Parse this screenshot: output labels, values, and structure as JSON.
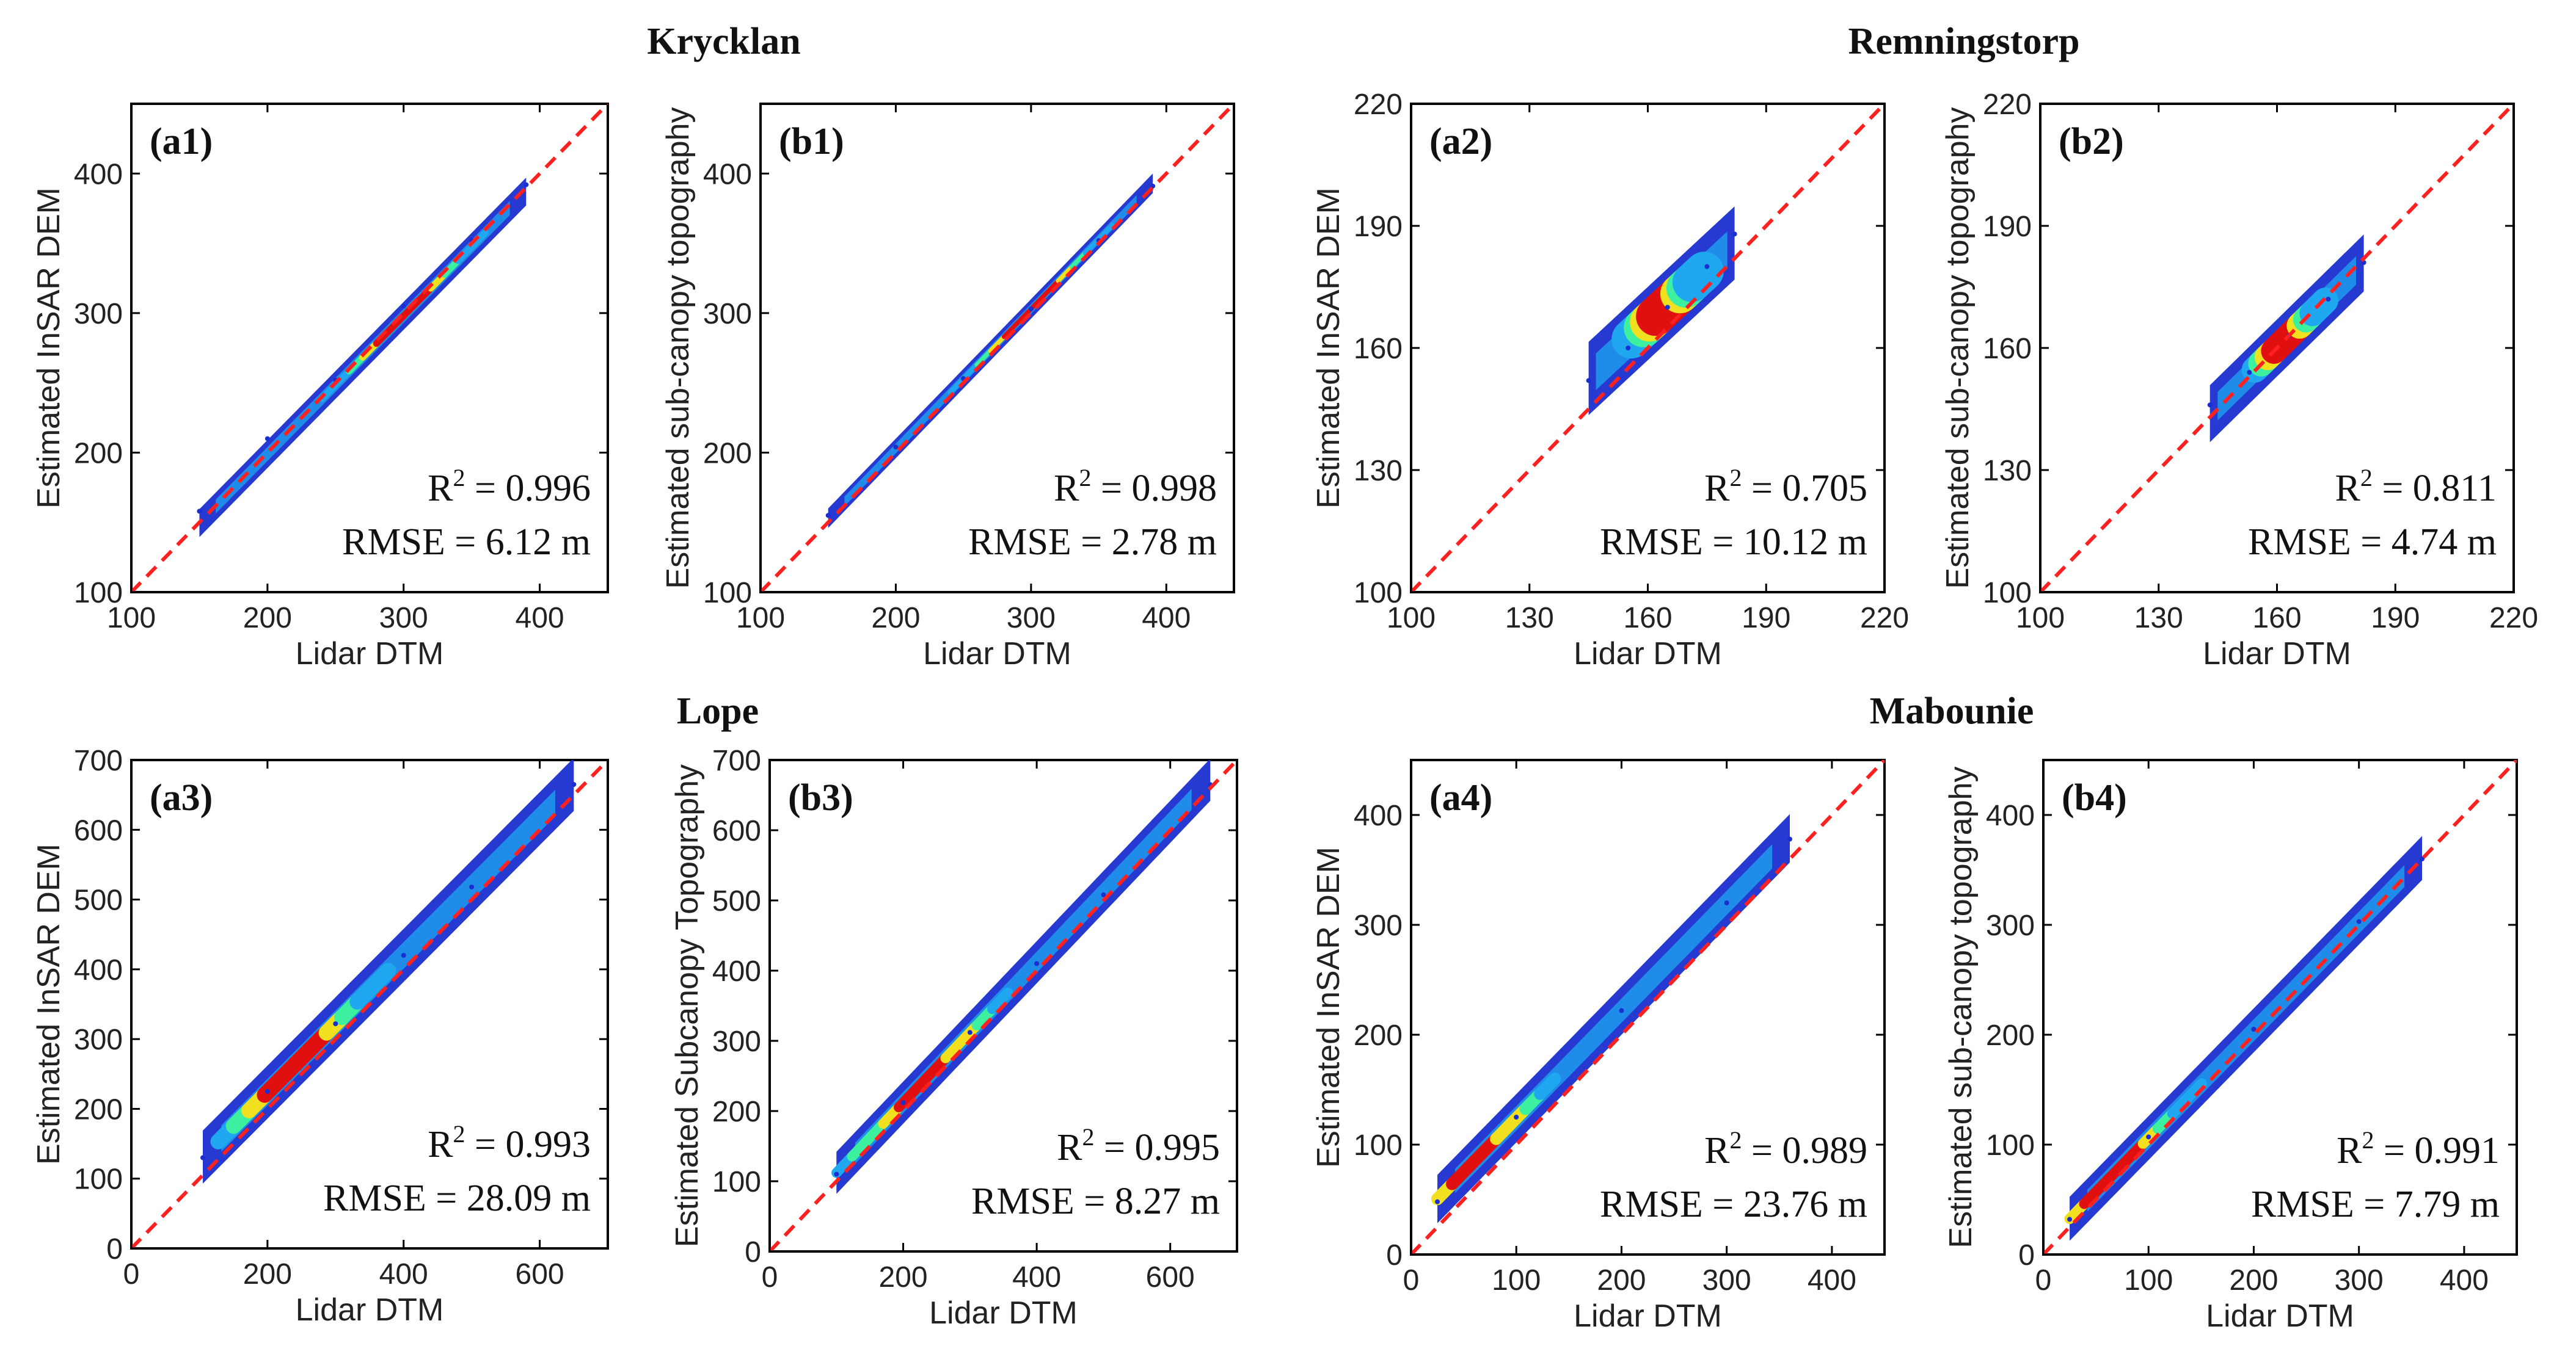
{
  "site_titles": [
    {
      "name": "Krycklan"
    },
    {
      "name": "Remningstorp"
    },
    {
      "name": "Lope"
    },
    {
      "name": "Mabounie"
    }
  ],
  "colors": {
    "identity_line": "#ff2020",
    "density_low": "#1a2fd0",
    "density_mid_low": "#1fa8f0",
    "density_mid": "#3df0a0",
    "density_mid_high": "#f0e020",
    "density_high": "#e01010",
    "axes": "#000000"
  },
  "chart_data": [
    {
      "id": "a1",
      "type": "scatter",
      "panel_label": "(a1)",
      "site": "Krycklan",
      "xlabel": "Lidar DTM",
      "ylabel": "Estimated InSAR DEM",
      "xlim": [
        100,
        450
      ],
      "ylim": [
        100,
        450
      ],
      "xticks": [
        100,
        200,
        300,
        400
      ],
      "yticks": [
        100,
        200,
        300,
        400
      ],
      "identity_line": true,
      "stats": {
        "r2_label": "R",
        "r2_sup": "2",
        "r2_value": " = 0.996",
        "rmse": "RMSE = 6.12 m"
      },
      "density": {
        "x_start": 150,
        "x_end": 390,
        "slope": 0.99,
        "offset": 1,
        "width": 10,
        "spread": 3,
        "peak_x": 300
      },
      "points": [
        [
          150,
          158
        ],
        [
          200,
          210
        ],
        [
          250,
          252
        ],
        [
          300,
          305
        ],
        [
          350,
          352
        ],
        [
          390,
          392
        ]
      ]
    },
    {
      "id": "b1",
      "type": "scatter",
      "panel_label": "(b1)",
      "site": "Krycklan",
      "xlabel": "Lidar DTM",
      "ylabel": "Estimated sub-canopy topography",
      "xlim": [
        100,
        450
      ],
      "ylim": [
        100,
        450
      ],
      "xticks": [
        100,
        200,
        300,
        400
      ],
      "yticks": [
        100,
        200,
        300,
        400
      ],
      "identity_line": true,
      "stats": {
        "r2_label": "R",
        "r2_sup": "2",
        "r2_value": " = 0.998",
        "rmse": "RMSE = 2.78 m"
      },
      "density": {
        "x_start": 150,
        "x_end": 390,
        "slope": 1.0,
        "offset": 3,
        "width": 7,
        "spread": 2,
        "peak_x": 300
      },
      "points": [
        [
          150,
          155
        ],
        [
          200,
          204
        ],
        [
          250,
          253
        ],
        [
          300,
          303
        ],
        [
          350,
          352
        ],
        [
          390,
          391
        ]
      ]
    },
    {
      "id": "a2",
      "type": "scatter",
      "panel_label": "(a2)",
      "site": "Remningstorp",
      "xlabel": "Lidar DTM",
      "ylabel": "Estimated InSAR DEM",
      "xlim": [
        100,
        220
      ],
      "ylim": [
        100,
        220
      ],
      "xticks": [
        100,
        130,
        160,
        190,
        220
      ],
      "yticks": [
        100,
        130,
        160,
        190,
        220
      ],
      "identity_line": true,
      "stats": {
        "r2_label": "R",
        "r2_sup": "2",
        "r2_value": " = 0.705",
        "rmse": "RMSE = 10.12 m"
      },
      "density": {
        "x_start": 145,
        "x_end": 182,
        "slope": 0.9,
        "offset": 22,
        "width": 9,
        "spread": 6,
        "peak_x": 165
      },
      "points": [
        [
          145,
          152
        ],
        [
          155,
          160
        ],
        [
          165,
          170
        ],
        [
          175,
          180
        ],
        [
          182,
          188
        ]
      ]
    },
    {
      "id": "b2",
      "type": "scatter",
      "panel_label": "(b2)",
      "site": "Remningstorp",
      "xlabel": "Lidar DTM",
      "ylabel": "Estimated sub-canopy topography",
      "xlim": [
        100,
        220
      ],
      "ylim": [
        100,
        220
      ],
      "xticks": [
        100,
        130,
        160,
        190,
        220
      ],
      "yticks": [
        100,
        130,
        160,
        190,
        220
      ],
      "identity_line": true,
      "stats": {
        "r2_label": "R",
        "r2_sup": "2",
        "r2_value": " = 0.811",
        "rmse": "RMSE = 4.74 m"
      },
      "density": {
        "x_start": 143,
        "x_end": 182,
        "slope": 0.95,
        "offset": 8,
        "width": 7,
        "spread": 4,
        "peak_x": 163
      },
      "points": [
        [
          143,
          146
        ],
        [
          153,
          154
        ],
        [
          163,
          163
        ],
        [
          173,
          172
        ],
        [
          182,
          181
        ]
      ]
    },
    {
      "id": "a3",
      "type": "scatter",
      "panel_label": "(a3)",
      "site": "Lope",
      "xlabel": "Lidar DTM",
      "ylabel": "Estimated InSAR DEM",
      "xlim": [
        0,
        700
      ],
      "ylim": [
        0,
        700
      ],
      "xticks": [
        0,
        200,
        400,
        600
      ],
      "yticks": [
        0,
        100,
        200,
        300,
        400,
        500,
        600,
        700
      ],
      "identity_line": true,
      "stats": {
        "r2_label": "R",
        "r2_sup": "2",
        "r2_value": " = 0.993",
        "rmse": "RMSE = 28.09 m"
      },
      "density": {
        "x_start": 105,
        "x_end": 650,
        "slope": 0.98,
        "offset": 28,
        "width": 38,
        "spread": 14,
        "peak_x": 250
      },
      "points": [
        [
          105,
          130
        ],
        [
          200,
          225
        ],
        [
          300,
          322
        ],
        [
          400,
          420
        ],
        [
          500,
          518
        ],
        [
          650,
          665
        ]
      ]
    },
    {
      "id": "b3",
      "type": "scatter",
      "panel_label": "(b3)",
      "site": "Lope",
      "xlabel": "Lidar DTM",
      "ylabel": "Estimated Subcanopy Topography",
      "xlim": [
        0,
        700
      ],
      "ylim": [
        0,
        700
      ],
      "xticks": [
        0,
        200,
        400,
        600
      ],
      "yticks": [
        0,
        100,
        200,
        300,
        400,
        500,
        600,
        700
      ],
      "identity_line": true,
      "stats": {
        "r2_label": "R",
        "r2_sup": "2",
        "r2_value": " = 0.995",
        "rmse": "RMSE = 8.27 m"
      },
      "density": {
        "x_start": 100,
        "x_end": 660,
        "slope": 1.0,
        "offset": 12,
        "width": 30,
        "spread": 9,
        "peak_x": 230
      },
      "points": [
        [
          100,
          110
        ],
        [
          200,
          212
        ],
        [
          300,
          312
        ],
        [
          400,
          410
        ],
        [
          500,
          508
        ],
        [
          660,
          665
        ]
      ]
    },
    {
      "id": "a4",
      "type": "scatter",
      "panel_label": "(a4)",
      "site": "Mabounie",
      "xlabel": "Lidar DTM",
      "ylabel": "Estimated InSAR DEM",
      "xlim": [
        0,
        450
      ],
      "ylim": [
        0,
        450
      ],
      "xticks": [
        0,
        100,
        200,
        300,
        400
      ],
      "yticks": [
        0,
        100,
        200,
        300,
        400
      ],
      "identity_line": true,
      "stats": {
        "r2_label": "R",
        "r2_sup": "2",
        "r2_value": " = 0.989",
        "rmse": "RMSE = 23.76 m"
      },
      "density": {
        "x_start": 25,
        "x_end": 360,
        "slope": 0.98,
        "offset": 26,
        "width": 22,
        "spread": 7,
        "peak_x": 60
      },
      "points": [
        [
          25,
          48
        ],
        [
          100,
          125
        ],
        [
          200,
          222
        ],
        [
          300,
          320
        ],
        [
          360,
          378
        ]
      ]
    },
    {
      "id": "b4",
      "type": "scatter",
      "panel_label": "(b4)",
      "site": "Mabounie",
      "xlabel": "Lidar DTM",
      "ylabel": "Estimated sub-canopy topography",
      "xlim": [
        0,
        450
      ],
      "ylim": [
        0,
        450
      ],
      "xticks": [
        0,
        100,
        200,
        300,
        400
      ],
      "yticks": [
        0,
        100,
        200,
        300,
        400
      ],
      "identity_line": true,
      "stats": {
        "r2_label": "R",
        "r2_sup": "2",
        "r2_value": " = 0.991",
        "rmse": "RMSE = 7.79 m"
      },
      "density": {
        "x_start": 25,
        "x_end": 360,
        "slope": 0.98,
        "offset": 8,
        "width": 20,
        "spread": 6,
        "peak_x": 70
      },
      "points": [
        [
          25,
          32
        ],
        [
          100,
          107
        ],
        [
          200,
          205
        ],
        [
          300,
          303
        ],
        [
          360,
          360
        ]
      ]
    }
  ]
}
